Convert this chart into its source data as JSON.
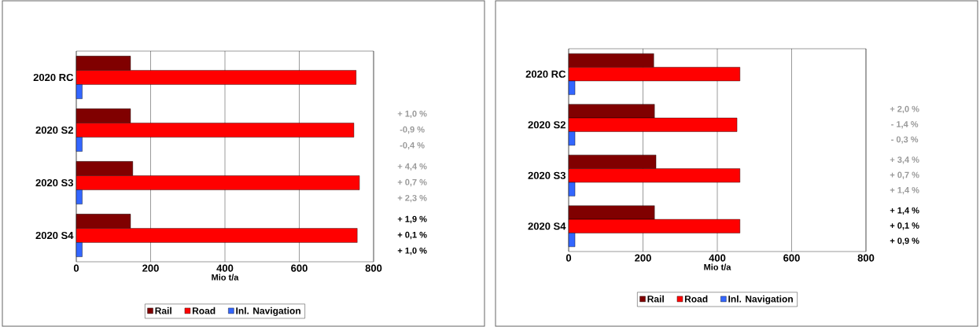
{
  "chart_data": [
    {
      "type": "bar",
      "orientation": "horizontal",
      "categories": [
        "2020 RC",
        "2020 S2",
        "2020 S3",
        "2020 S4"
      ],
      "xlabel": "Mio t/a",
      "xlim": [
        0,
        800
      ],
      "xticks": [
        0,
        200,
        400,
        600,
        800
      ],
      "grid": "x",
      "legend": "bottom",
      "series": [
        {
          "name": "Rail",
          "color": "#800000",
          "values": [
            146,
            146,
            152,
            146
          ]
        },
        {
          "name": "Road",
          "color": "#ff0000",
          "values": [
            753,
            747,
            762,
            756
          ]
        },
        {
          "name": "Inl. Navigation",
          "color": "#3366ff",
          "values": [
            16,
            16,
            16,
            16
          ]
        }
      ],
      "annotations": [
        "+ 1,0 %",
        "-0,9 %",
        "-0,4 %",
        "+ 4,4 %",
        "+ 0,7 %",
        "+ 2,3 %",
        "+ 1,9 %",
        "+ 0,1 %",
        "+ 1,0 %"
      ]
    },
    {
      "type": "bar",
      "orientation": "horizontal",
      "categories": [
        "2020 RC",
        "2020 S2",
        "2020 S3",
        "2020 S4"
      ],
      "xlabel": "Mio t/a",
      "xlim": [
        0,
        800
      ],
      "xticks": [
        0,
        200,
        400,
        600,
        800
      ],
      "grid": "x",
      "legend": "bottom",
      "series": [
        {
          "name": "Rail",
          "color": "#800000",
          "values": [
            229,
            231,
            235,
            231
          ]
        },
        {
          "name": "Road",
          "color": "#ff0000",
          "values": [
            461,
            453,
            461,
            461
          ]
        },
        {
          "name": "Inl. Navigation",
          "color": "#3366ff",
          "values": [
            17,
            17,
            17,
            17
          ]
        }
      ],
      "annotations": [
        "+ 2,0 %",
        "- 1,4 %",
        "- 0,3 %",
        "+ 3,4 %",
        "+ 0,7 %",
        "+ 1,4 %",
        "+ 1,4 %",
        "+ 0,1 %",
        "+ 0,9 %"
      ]
    }
  ]
}
